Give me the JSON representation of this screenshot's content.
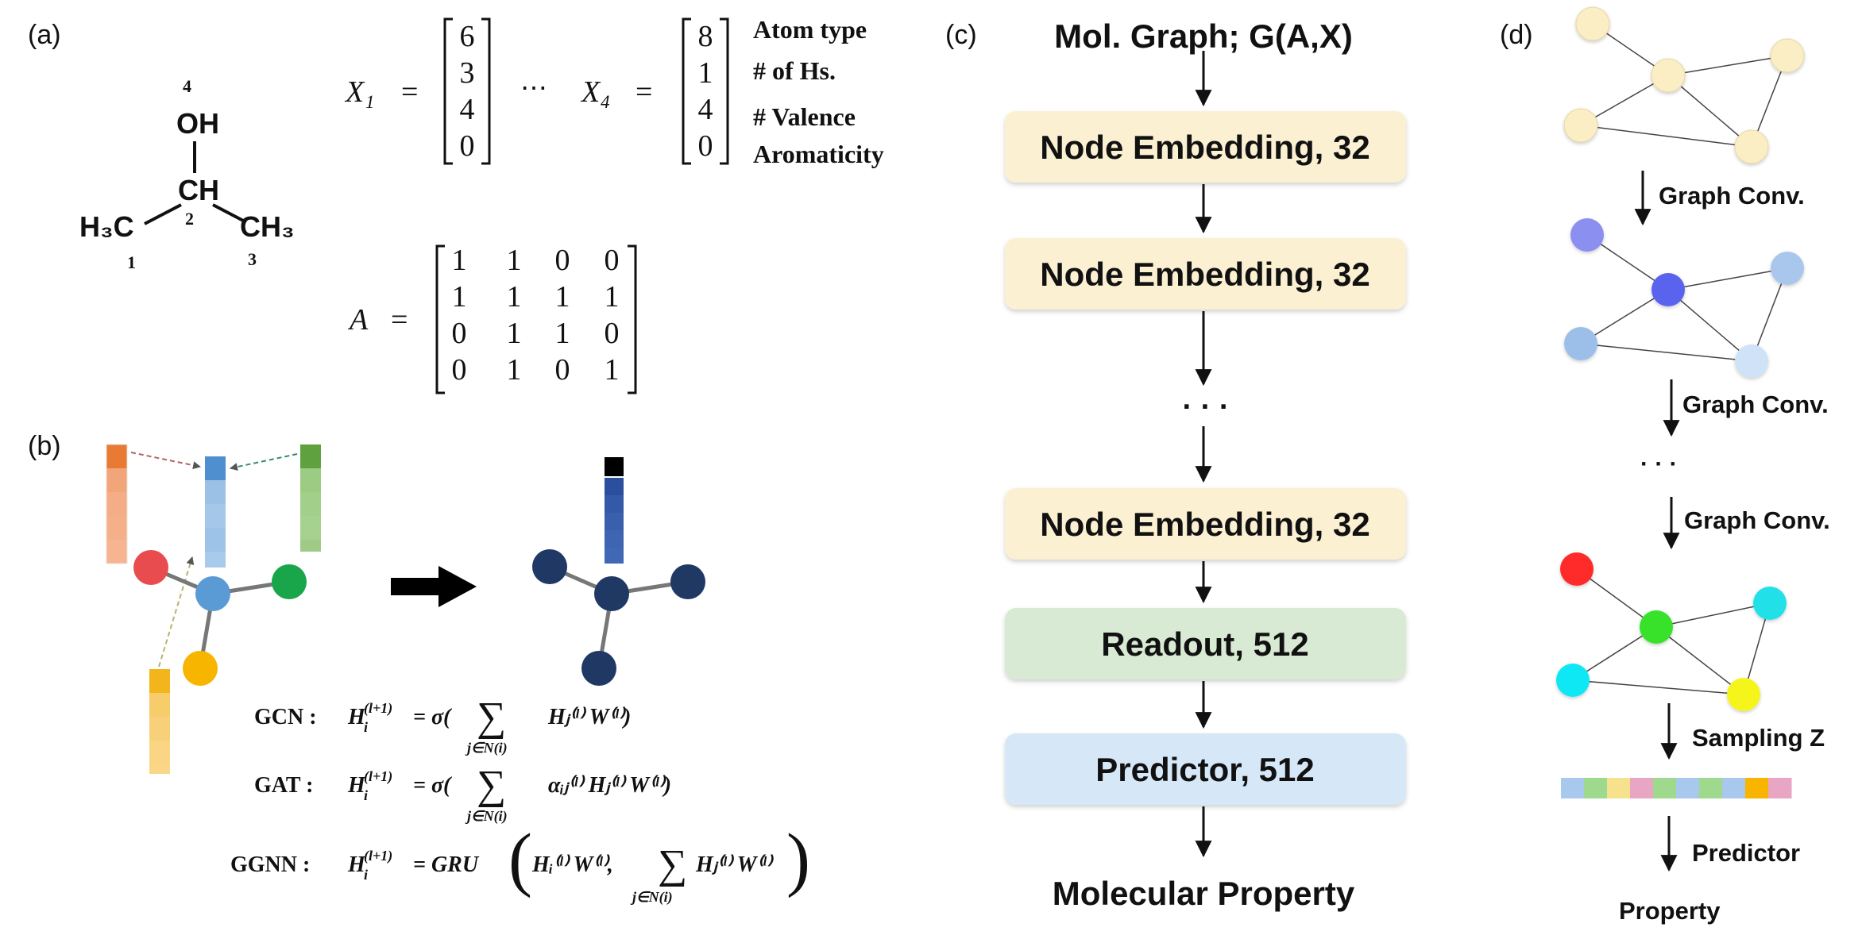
{
  "panels": {
    "a": {
      "label": "(a)",
      "molecule": {
        "oh": "OH",
        "ch": "CH",
        "h3c": "H₃C",
        "ch3": "CH₃",
        "num_1": "1",
        "num_2": "2",
        "num_3": "3",
        "num_4": "4"
      },
      "x1_label": "X₁",
      "x4_label": "X₄",
      "eq": "=",
      "dots": "⋯",
      "x1_values": [
        "6",
        "3",
        "4",
        "0"
      ],
      "x4_values": [
        "8",
        "1",
        "4",
        "0"
      ],
      "feature_names": [
        "Atom type",
        "# of Hs.",
        "# Valence",
        "Aromaticity"
      ],
      "a_label": "A",
      "adjacency": [
        [
          "1",
          "1",
          "0",
          "0"
        ],
        [
          "1",
          "1",
          "1",
          "1"
        ],
        [
          "0",
          "1",
          "1",
          "0"
        ],
        [
          "0",
          "1",
          "0",
          "1"
        ]
      ]
    },
    "b": {
      "label": "(b)",
      "colors": {
        "left_vector": "#f0956a",
        "center_vector": "#8db7e0",
        "right_vector": "#8dbf77",
        "bottom_vector": "#f7c55a",
        "node_red": "#e84c4f",
        "node_blue": "#5b9bd5",
        "node_green": "#19a64a",
        "node_yellow": "#f7b500",
        "node_navy": "#1f3864",
        "result_vector": "#3a5ba8"
      },
      "equations": [
        {
          "name": "GCN :",
          "lhs": "H",
          "sup": "(l+1)",
          "sub": "i",
          "rhs": "= σ(",
          "sum_sub": "j∈N(i)",
          "body": "Hⱼ⁽ˡ⁾ W⁽ˡ⁾)"
        },
        {
          "name": "GAT :",
          "lhs": "H",
          "sup": "(l+1)",
          "sub": "i",
          "rhs": "= σ(",
          "sum_sub": "j∈N(i)",
          "body": "αᵢⱼ⁽ˡ⁾ Hⱼ⁽ˡ⁾ W⁽ˡ⁾)"
        },
        {
          "name": "GGNN :",
          "lhs": "H",
          "sup": "(l+1)",
          "sub": "i",
          "rhs": "= GRU",
          "sum_sub": "j∈N(i)",
          "body": "Hᵢ⁽ˡ⁾ W⁽ˡ⁾,",
          "body2": "Hⱼ⁽ˡ⁾ W⁽ˡ⁾"
        }
      ]
    },
    "c": {
      "label": "(c)",
      "top": "Mol. Graph; G(A,X)",
      "boxes": [
        {
          "text": "Node Embedding, 32",
          "color": "#fcf0d2"
        },
        {
          "text": "Node Embedding, 32",
          "color": "#fcf0d2"
        },
        {
          "text": "Node Embedding, 32",
          "color": "#fcf0d2"
        },
        {
          "text": "Readout, 512",
          "color": "#d8ead3"
        },
        {
          "text": "Predictor, 512",
          "color": "#d6e7f7"
        }
      ],
      "ellipsis": "· · ·",
      "bottom": "Molecular Property"
    },
    "d": {
      "label": "(d)",
      "steps": [
        "Graph Conv.",
        "Graph Conv.",
        "Graph Conv.",
        "Sampling Z",
        "Predictor"
      ],
      "ellipsis": "· · ·",
      "bottom": "Property",
      "colors": {
        "graph1": "#fbedc4",
        "graph2": [
          "#8a8ff0",
          "#5a63ee",
          "#a9c6ec",
          "#9cbfea",
          "#cfe2f7"
        ],
        "graph3": [
          "#ff2a2a",
          "#37e22b",
          "#22e0e8",
          "#10e8f4",
          "#f5f51f"
        ],
        "strip": [
          "#a8c8ee",
          "#9fd98e",
          "#f6e28c",
          "#e8a6c4",
          "#9fd98e",
          "#a8c8ee",
          "#9fd98e",
          "#a8c8ee",
          "#f7b500",
          "#e8a6c4"
        ]
      }
    }
  }
}
